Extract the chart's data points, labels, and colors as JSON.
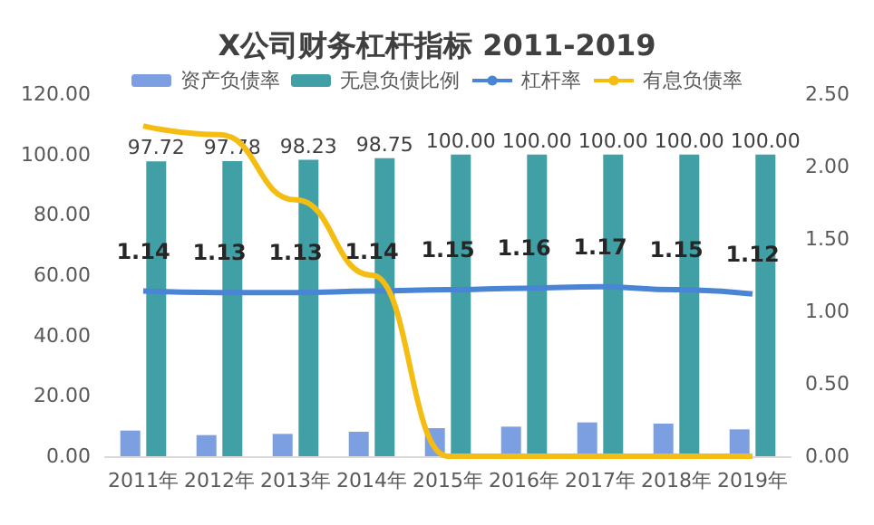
{
  "chart_data": {
    "type": "bar",
    "title": "X公司财务杠杆指标 2011-2019",
    "categories": [
      "2011年",
      "2012年",
      "2013年",
      "2014年",
      "2015年",
      "2016年",
      "2017年",
      "2018年",
      "2019年"
    ],
    "series": [
      {
        "name": "资产负债率",
        "color": "#7b9fe0",
        "values": [
          8.5,
          7.0,
          7.4,
          8.1,
          9.3,
          9.8,
          11.2,
          10.8,
          8.9
        ]
      },
      {
        "name": "无息负债比例",
        "color": "#41a0a6",
        "values": [
          97.72,
          97.78,
          98.23,
          98.75,
          100,
          100,
          100,
          100,
          100
        ],
        "value_labels": [
          "97.72",
          "97.78",
          "98.23",
          "98.75",
          "100.00",
          "100.00",
          "100.00",
          "100.00",
          "100.00"
        ]
      },
      {
        "name": "杠杆率",
        "type": "line",
        "axis": "y2",
        "color": "#4a84d4",
        "values": [
          1.14,
          1.13,
          1.13,
          1.14,
          1.15,
          1.16,
          1.17,
          1.15,
          1.12
        ],
        "value_labels": [
          "1.14",
          "1.13",
          "1.13",
          "1.14",
          "1.15",
          "1.16",
          "1.17",
          "1.15",
          "1.12"
        ]
      },
      {
        "name": "有息负债率",
        "type": "line",
        "axis": "y2",
        "color": "#f5bc12",
        "values": [
          2.28,
          2.22,
          1.77,
          1.25,
          0,
          0,
          0,
          0,
          0
        ]
      }
    ],
    "ylim": [
      0,
      120
    ],
    "yticks": [
      {
        "value": 0,
        "label": "0.00"
      },
      {
        "value": 20,
        "label": "20.00"
      },
      {
        "value": 40,
        "label": "40.00"
      },
      {
        "value": 60,
        "label": "60.00"
      },
      {
        "value": 80,
        "label": "80.00"
      },
      {
        "value": 100,
        "label": "100.00"
      },
      {
        "value": 120,
        "label": "120.00"
      }
    ],
    "y2lim": [
      0,
      2.5
    ],
    "y2ticks": [
      {
        "value": 0,
        "label": "0.00"
      },
      {
        "value": 0.5,
        "label": "0.50"
      },
      {
        "value": 1,
        "label": "1.00"
      },
      {
        "value": 1.5,
        "label": "1.50"
      },
      {
        "value": 2,
        "label": "2.00"
      },
      {
        "value": 2.5,
        "label": "2.50"
      }
    ],
    "grid": false,
    "legend": "top",
    "marker": "none"
  }
}
